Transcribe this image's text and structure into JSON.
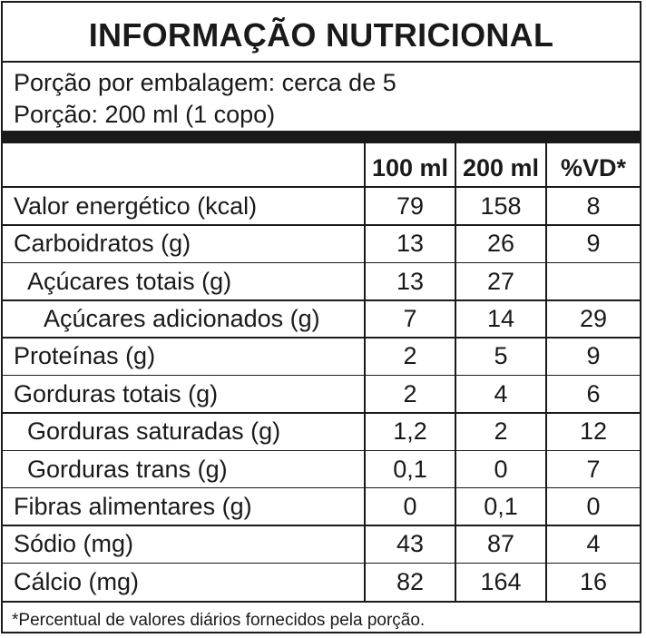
{
  "title": "INFORMAÇÃO NUTRICIONAL",
  "servings_per_package": "Porção por embalagem: cerca de 5",
  "serving_size": "Porção: 200 ml (1 copo)",
  "columns": [
    "100 ml",
    "200 ml",
    "%VD*"
  ],
  "rows": [
    {
      "name": "Valor energético (kcal)",
      "v100": "79",
      "v200": "158",
      "vd": "8",
      "indent": 0
    },
    {
      "name": "Carboidratos (g)",
      "v100": "13",
      "v200": "26",
      "vd": "9",
      "indent": 0
    },
    {
      "name": "Açúcares totais (g)",
      "v100": "13",
      "v200": "27",
      "vd": "",
      "indent": 1
    },
    {
      "name": "Açúcares adicionados (g)",
      "v100": "7",
      "v200": "14",
      "vd": "29",
      "indent": 2
    },
    {
      "name": "Proteínas (g)",
      "v100": "2",
      "v200": "5",
      "vd": "9",
      "indent": 0
    },
    {
      "name": "Gorduras totais (g)",
      "v100": "2",
      "v200": "4",
      "vd": "6",
      "indent": 0
    },
    {
      "name": "Gorduras saturadas (g)",
      "v100": "1,2",
      "v200": "2",
      "vd": "12",
      "indent": 1
    },
    {
      "name": "Gorduras trans (g)",
      "v100": "0,1",
      "v200": "0",
      "vd": "7",
      "indent": 1
    },
    {
      "name": "Fibras alimentares (g)",
      "v100": "0",
      "v200": "0,1",
      "vd": "0",
      "indent": 0
    },
    {
      "name": "Sódio (mg)",
      "v100": "43",
      "v200": "87",
      "vd": "4",
      "indent": 0
    },
    {
      "name": "Cálcio (mg)",
      "v100": "82",
      "v200": "164",
      "vd": "16",
      "indent": 0
    }
  ],
  "footnote": "*Percentual de valores diários fornecidos pela porção."
}
